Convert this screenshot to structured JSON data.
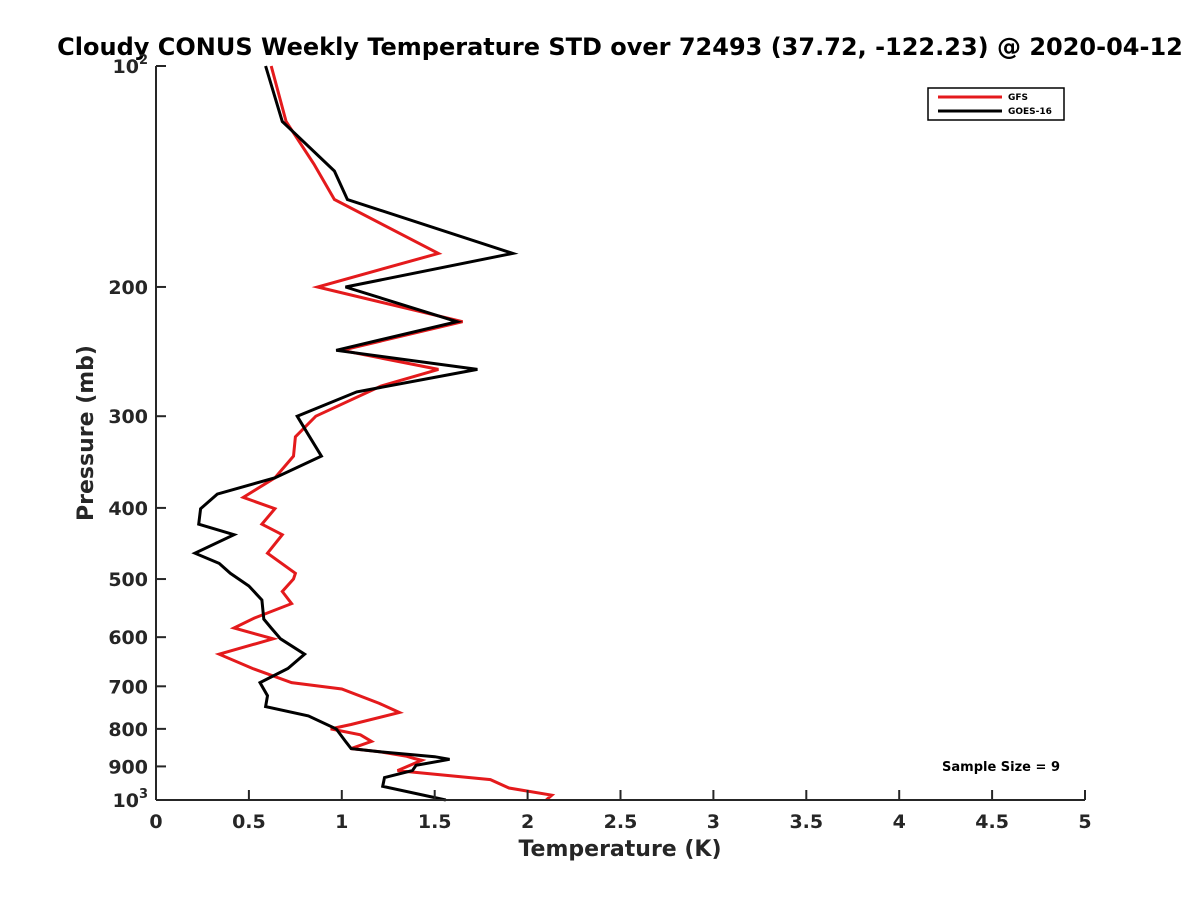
{
  "chart_data": {
    "type": "line",
    "title": "Cloudy CONUS Weekly Temperature STD over 72493 (37.72, -122.23) @ 2020-04-12",
    "xlabel": "Temperature (K)",
    "ylabel": "Pressure (mb)",
    "xlim": [
      0,
      5
    ],
    "ylim": [
      100,
      1000
    ],
    "y_scale": "log",
    "y_reversed": true,
    "grid": false,
    "legend_position": "top-right",
    "x_ticks": [
      {
        "value": 0,
        "label": "0"
      },
      {
        "value": 0.5,
        "label": "0.5"
      },
      {
        "value": 1,
        "label": "1"
      },
      {
        "value": 1.5,
        "label": "1.5"
      },
      {
        "value": 2,
        "label": "2"
      },
      {
        "value": 2.5,
        "label": "2.5"
      },
      {
        "value": 3,
        "label": "3"
      },
      {
        "value": 3.5,
        "label": "3.5"
      },
      {
        "value": 4,
        "label": "4"
      },
      {
        "value": 4.5,
        "label": "4.5"
      },
      {
        "value": 5,
        "label": "5"
      }
    ],
    "y_ticks": [
      {
        "value": 100,
        "base": "10",
        "exp": "2"
      },
      {
        "value": 200,
        "base": "200",
        "exp": ""
      },
      {
        "value": 300,
        "base": "300",
        "exp": ""
      },
      {
        "value": 400,
        "base": "400",
        "exp": ""
      },
      {
        "value": 500,
        "base": "500",
        "exp": ""
      },
      {
        "value": 600,
        "base": "600",
        "exp": ""
      },
      {
        "value": 700,
        "base": "700",
        "exp": ""
      },
      {
        "value": 800,
        "base": "800",
        "exp": ""
      },
      {
        "value": 900,
        "base": "900",
        "exp": ""
      },
      {
        "value": 1000,
        "base": "10",
        "exp": "3"
      }
    ],
    "annotation": "Sample Size = 9",
    "series": [
      {
        "name": "GFS",
        "color": "#e41a1c",
        "points": [
          [
            0.62,
            100
          ],
          [
            0.7,
            119
          ],
          [
            0.85,
            136
          ],
          [
            0.96,
            152
          ],
          [
            1.52,
            180
          ],
          [
            0.87,
            200
          ],
          [
            1.65,
            223
          ],
          [
            1.0,
            244
          ],
          [
            1.52,
            259
          ],
          [
            1.21,
            273
          ],
          [
            0.86,
            300
          ],
          [
            0.75,
            320
          ],
          [
            0.74,
            340
          ],
          [
            0.64,
            364
          ],
          [
            0.47,
            387
          ],
          [
            0.64,
            401
          ],
          [
            0.57,
            421
          ],
          [
            0.68,
            435
          ],
          [
            0.6,
            461
          ],
          [
            0.75,
            491
          ],
          [
            0.74,
            500
          ],
          [
            0.68,
            520
          ],
          [
            0.73,
            540
          ],
          [
            0.53,
            565
          ],
          [
            0.42,
            583
          ],
          [
            0.63,
            603
          ],
          [
            0.34,
            633
          ],
          [
            0.52,
            662
          ],
          [
            0.73,
            692
          ],
          [
            1.0,
            706
          ],
          [
            1.2,
            738
          ],
          [
            1.31,
            760
          ],
          [
            1.05,
            789
          ],
          [
            0.94,
            800
          ],
          [
            1.1,
            815
          ],
          [
            1.16,
            832
          ],
          [
            1.05,
            851
          ],
          [
            1.21,
            860
          ],
          [
            1.35,
            872
          ],
          [
            1.39,
            878
          ],
          [
            1.43,
            883
          ],
          [
            1.3,
            912
          ],
          [
            1.8,
            938
          ],
          [
            1.9,
            963
          ],
          [
            2.13,
            985
          ],
          [
            2.1,
            1000
          ]
        ]
      },
      {
        "name": "GOES-16",
        "color": "#000000",
        "points": [
          [
            0.59,
            100
          ],
          [
            0.68,
            119
          ],
          [
            0.96,
            139
          ],
          [
            1.03,
            152
          ],
          [
            1.92,
            180
          ],
          [
            1.02,
            200
          ],
          [
            1.62,
            223
          ],
          [
            0.97,
            244
          ],
          [
            1.73,
            259
          ],
          [
            1.08,
            278
          ],
          [
            0.76,
            300
          ],
          [
            0.82,
            318
          ],
          [
            0.89,
            340
          ],
          [
            0.64,
            364
          ],
          [
            0.33,
            383
          ],
          [
            0.24,
            401
          ],
          [
            0.23,
            421
          ],
          [
            0.42,
            435
          ],
          [
            0.21,
            461
          ],
          [
            0.34,
            476
          ],
          [
            0.4,
            491
          ],
          [
            0.5,
            511
          ],
          [
            0.57,
            534
          ],
          [
            0.58,
            567
          ],
          [
            0.62,
            583
          ],
          [
            0.67,
            603
          ],
          [
            0.8,
            633
          ],
          [
            0.71,
            662
          ],
          [
            0.56,
            692
          ],
          [
            0.6,
            721
          ],
          [
            0.59,
            746
          ],
          [
            0.82,
            768
          ],
          [
            0.97,
            800
          ],
          [
            1.02,
            832
          ],
          [
            1.05,
            851
          ],
          [
            1.21,
            860
          ],
          [
            1.5,
            873
          ],
          [
            1.58,
            880
          ],
          [
            1.4,
            897
          ],
          [
            1.38,
            912
          ],
          [
            1.23,
            932
          ],
          [
            1.22,
            958
          ],
          [
            1.56,
            1000
          ]
        ]
      }
    ]
  }
}
